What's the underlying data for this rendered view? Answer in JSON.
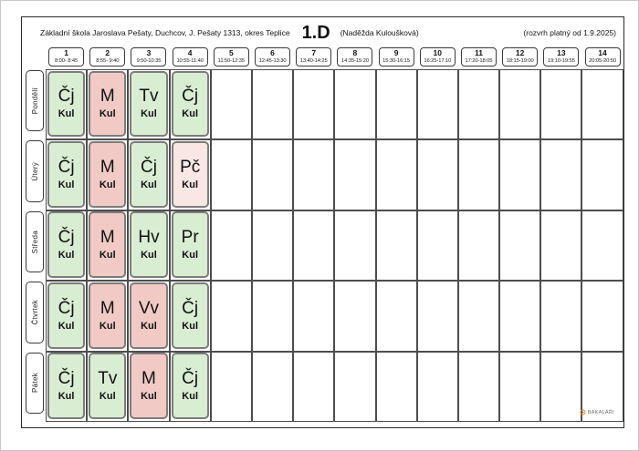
{
  "header": {
    "school": "Základní škola Jaroslava Pešaty, Duchcov, J. Pešaty 1313, okres Teplice",
    "class_name": "1.D",
    "teacher": "(Naděžda Kuloušková)",
    "validity": "(rozvrh platný od 1.9.2025)"
  },
  "periods": [
    {
      "num": "1",
      "time": "8:00- 8:45"
    },
    {
      "num": "2",
      "time": "8:55- 9:40"
    },
    {
      "num": "3",
      "time": "9:50-10:35"
    },
    {
      "num": "4",
      "time": "10:55-11:40"
    },
    {
      "num": "5",
      "time": "11:50-12:35"
    },
    {
      "num": "6",
      "time": "12:45-13:30"
    },
    {
      "num": "7",
      "time": "13:40-14:25"
    },
    {
      "num": "8",
      "time": "14:35-15:20"
    },
    {
      "num": "9",
      "time": "15:30-16:15"
    },
    {
      "num": "10",
      "time": "16:25-17:10"
    },
    {
      "num": "11",
      "time": "17:20-18:05"
    },
    {
      "num": "12",
      "time": "18:15-19:00"
    },
    {
      "num": "13",
      "time": "19:10-19:55"
    },
    {
      "num": "14",
      "time": "20:05-20:50"
    }
  ],
  "days": [
    {
      "label": "Pondělí",
      "lessons": [
        {
          "subject": "Čj",
          "teacher": "Kul",
          "color": "green"
        },
        {
          "subject": "M",
          "teacher": "Kul",
          "color": "pink"
        },
        {
          "subject": "Tv",
          "teacher": "Kul",
          "color": "green"
        },
        {
          "subject": "Čj",
          "teacher": "Kul",
          "color": "green"
        }
      ]
    },
    {
      "label": "Úterý",
      "lessons": [
        {
          "subject": "Čj",
          "teacher": "Kul",
          "color": "green"
        },
        {
          "subject": "M",
          "teacher": "Kul",
          "color": "pink"
        },
        {
          "subject": "Čj",
          "teacher": "Kul",
          "color": "green"
        },
        {
          "subject": "Pč",
          "teacher": "Kul",
          "color": "pale_pink"
        }
      ]
    },
    {
      "label": "Středa",
      "lessons": [
        {
          "subject": "Čj",
          "teacher": "Kul",
          "color": "green"
        },
        {
          "subject": "M",
          "teacher": "Kul",
          "color": "pink"
        },
        {
          "subject": "Hv",
          "teacher": "Kul",
          "color": "green"
        },
        {
          "subject": "Pr",
          "teacher": "Kul",
          "color": "green"
        }
      ]
    },
    {
      "label": "Čtvrtek",
      "lessons": [
        {
          "subject": "Čj",
          "teacher": "Kul",
          "color": "green"
        },
        {
          "subject": "M",
          "teacher": "Kul",
          "color": "pink"
        },
        {
          "subject": "Vv",
          "teacher": "Kul",
          "color": "pink"
        },
        {
          "subject": "Čj",
          "teacher": "Kul",
          "color": "green"
        }
      ]
    },
    {
      "label": "Pátek",
      "lessons": [
        {
          "subject": "Čj",
          "teacher": "Kul",
          "color": "green"
        },
        {
          "subject": "Tv",
          "teacher": "Kul",
          "color": "green"
        },
        {
          "subject": "M",
          "teacher": "Kul",
          "color": "pink"
        },
        {
          "subject": "Čj",
          "teacher": "Kul",
          "color": "green"
        }
      ]
    }
  ],
  "grid": {
    "total_periods": 14
  },
  "colors": {
    "green": "#d9edd3",
    "pink": "#f1cac5",
    "pale_pink": "#f8e7e3",
    "card_border": "#7c7c7c"
  },
  "footer": {
    "brand": "BAKALÁŘI"
  }
}
